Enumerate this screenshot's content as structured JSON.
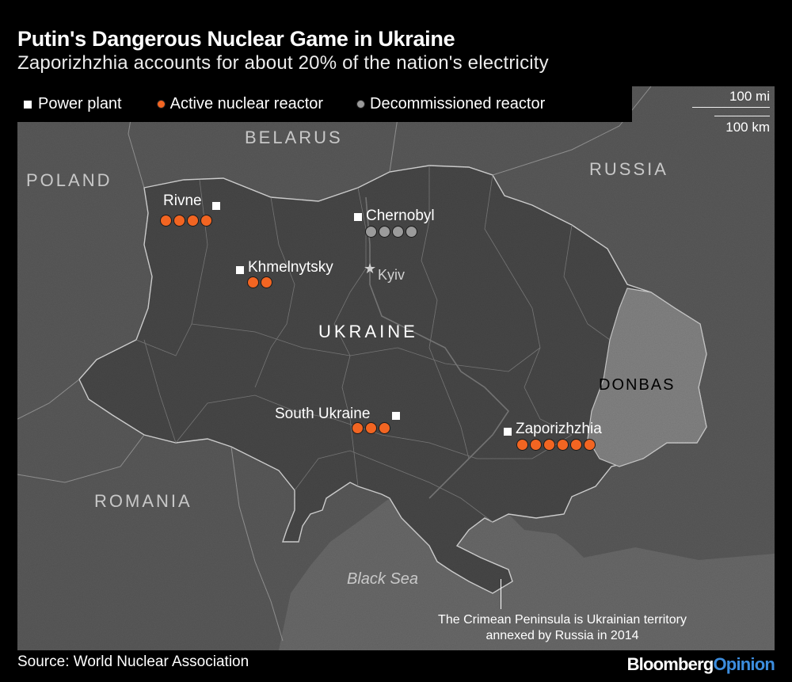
{
  "header": {
    "title": "Putin's Dangerous Nuclear Game in Ukraine",
    "subtitle": "Zaporizhzhia accounts for about 20% of the nation's electricity"
  },
  "legend": {
    "power_plant": "Power plant",
    "active_reactor": "Active nuclear reactor",
    "decommissioned_reactor": "Decommissioned reactor"
  },
  "scale": {
    "miles": "100 mi",
    "kilometers": "100 km"
  },
  "regions": {
    "belarus": "BELARUS",
    "poland": "POLAND",
    "russia": "RUSSIA",
    "ukraine": "UKRAINE",
    "romania": "ROMANIA",
    "donbas": "DONBAS"
  },
  "plants": [
    {
      "name": "Rivne",
      "active_reactors": 4,
      "decommissioned_reactors": 0
    },
    {
      "name": "Chernobyl",
      "active_reactors": 0,
      "decommissioned_reactors": 4
    },
    {
      "name": "Khmelnytsky",
      "active_reactors": 2,
      "decommissioned_reactors": 0
    },
    {
      "name": "South Ukraine",
      "active_reactors": 3,
      "decommissioned_reactors": 0
    },
    {
      "name": "Zaporizhzhia",
      "active_reactors": 6,
      "decommissioned_reactors": 0
    }
  ],
  "cities": {
    "kyiv": "Kyiv"
  },
  "water": {
    "black_sea": "Black Sea"
  },
  "annotation": {
    "crimea": "The Crimean Peninsula is Ukrainian territory annexed by Russia in 2014"
  },
  "footer": {
    "source": "Source: World Nuclear Association",
    "brand_primary": "Bloomberg",
    "brand_secondary": "Opinion"
  },
  "colors": {
    "active_reactor": "#f26522",
    "decommissioned_reactor": "#9b9b9b",
    "land": "#5a5a5a",
    "ukraine": "#4a4a4a",
    "donbas": "#848484",
    "sea": "#6a6a6a",
    "brand_accent": "#3c8dde"
  }
}
